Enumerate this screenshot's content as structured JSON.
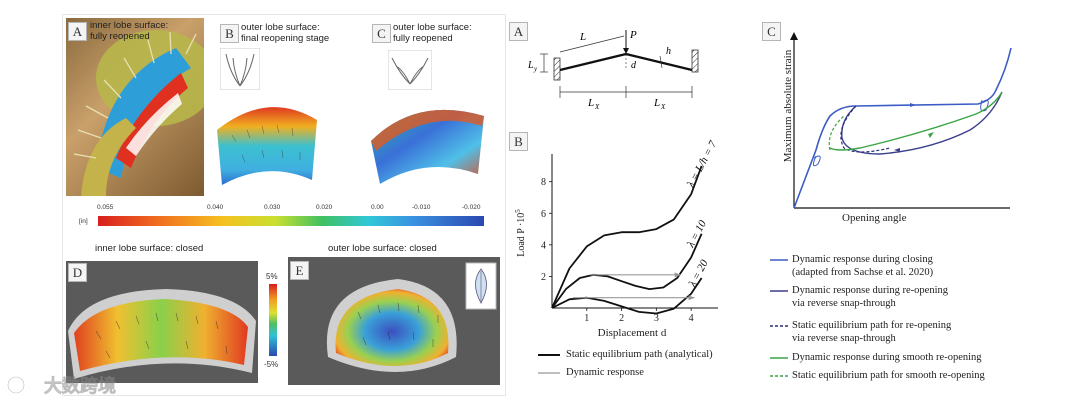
{
  "left_figure": {
    "panel_a": {
      "letter": "A",
      "caption_line1": "inner lobe surface:",
      "caption_line2": "fully reopened"
    },
    "panel_b": {
      "letter": "B",
      "caption_line1": "outer lobe surface:",
      "caption_line2": "final reopening stage"
    },
    "panel_c": {
      "letter": "C",
      "caption_line1": "outer lobe surface:",
      "caption_line2": "fully reopened"
    },
    "colorbar": {
      "unit": "[in]",
      "ticks": [
        "0.055",
        "0.040",
        "0.030",
        "0.020",
        "0.00",
        "-0.010",
        "-0.020"
      ]
    },
    "panel_d": {
      "letter": "D",
      "caption": "inner lobe surface: closed"
    },
    "panel_e": {
      "letter": "E",
      "caption": "outer lobe surface: closed"
    },
    "strain_scale": {
      "top": "5%",
      "bottom": "-5%"
    }
  },
  "mid_figure": {
    "panel_a": {
      "letter": "A",
      "L": "L",
      "P": "P",
      "d": "d",
      "h": "h",
      "Ly": "L",
      "Ly_sub": "y",
      "Lx_left": "L",
      "Lx_right": "L",
      "Lx_sub": "X"
    },
    "panel_b": {
      "letter": "B",
      "ylabel": "Load P ·10",
      "ylabel_sup": "5",
      "xlabel": "Displacement d",
      "curve_labels": [
        "λ = L/h = 7",
        "λ = 10",
        "λ = 20"
      ],
      "legend": [
        "Static equilibrium path (analytical)",
        "Dynamic response"
      ]
    }
  },
  "chart_data": {
    "type": "line",
    "title": "",
    "xlabel": "Displacement d",
    "ylabel": "Load P ·10^5",
    "xlim": [
      0,
      4.6
    ],
    "ylim": [
      0,
      9.5
    ],
    "x_ticks": [
      1,
      2,
      3,
      4
    ],
    "y_ticks": [
      2,
      4,
      6,
      8
    ],
    "series": [
      {
        "name": "λ = L/h = 7",
        "style": "static",
        "x": [
          0,
          0.5,
          1.0,
          1.5,
          2.0,
          2.5,
          3.0,
          3.5,
          4.0,
          4.3
        ],
        "y": [
          0,
          2.5,
          3.9,
          4.6,
          4.8,
          4.8,
          5.0,
          5.6,
          7.2,
          9.0
        ]
      },
      {
        "name": "λ = 10",
        "style": "static",
        "x": [
          0,
          0.4,
          0.8,
          1.2,
          1.6,
          2.0,
          2.4,
          2.8,
          3.2,
          3.6,
          4.0,
          4.3
        ],
        "y": [
          0,
          1.2,
          1.9,
          2.1,
          2.0,
          1.7,
          1.4,
          1.2,
          1.3,
          1.9,
          3.2,
          4.7
        ]
      },
      {
        "name": "λ = 20",
        "style": "static",
        "x": [
          0,
          0.5,
          1.0,
          1.5,
          2.0,
          2.5,
          3.0,
          3.5,
          4.0,
          4.3
        ],
        "y": [
          0,
          0.55,
          0.65,
          0.45,
          0.1,
          -0.25,
          -0.35,
          -0.05,
          0.9,
          1.9
        ]
      },
      {
        "name": "Dynamic response (λ = 10)",
        "style": "dynamic",
        "x": [
          1.1,
          3.7
        ],
        "y": [
          2.1,
          2.1
        ]
      },
      {
        "name": "Dynamic response (λ = 20)",
        "style": "dynamic",
        "x": [
          0.6,
          4.1
        ],
        "y": [
          0.65,
          0.65
        ]
      }
    ]
  },
  "right_figure": {
    "panel_c": {
      "letter": "C"
    },
    "ylabel": "Maximum absolute strain",
    "xlabel": "Opening angle",
    "legend": [
      {
        "text": "Dynamic response during closing",
        "color": "#3b5cc4",
        "dash": false
      },
      {
        "text": "(adapted from Sachse et al. 2020)",
        "color": "",
        "dash": false
      },
      {
        "text": "Dynamic response during re-opening",
        "color": "#3a3e8c",
        "dash": false
      },
      {
        "text": "via reverse snap-through",
        "color": "",
        "dash": false
      },
      {
        "text": "Static equilibrium path for re-opening",
        "color": "#2a2f7a",
        "dash": true
      },
      {
        "text": "via reverse snap-through",
        "color": "",
        "dash": false
      },
      {
        "text": "Dynamic response during smooth re-opening",
        "color": "#3aa545",
        "dash": false
      },
      {
        "text": "Static equilibrium path for smooth re-opening",
        "color": "#3aa545",
        "dash": true
      }
    ]
  },
  "watermark": {
    "text": "大数跨境"
  }
}
